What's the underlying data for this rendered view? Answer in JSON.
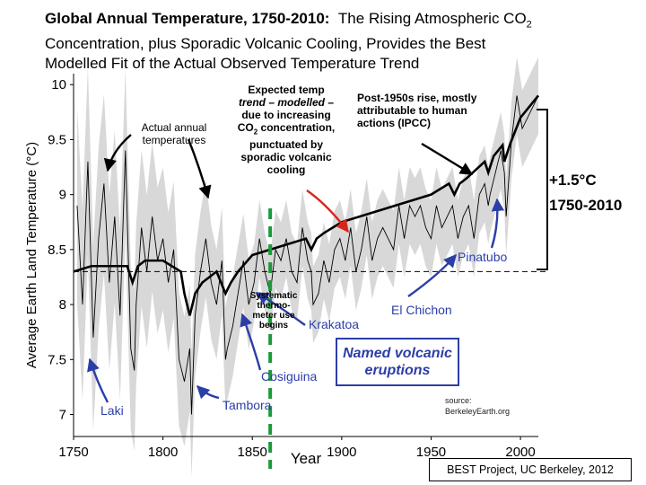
{
  "title": {
    "bold": "Global Annual Temperature, 1750-2010:",
    "line1_rest": "The Rising Atmospheric CO",
    "line1_sub": "2",
    "line2": "Concentration, plus Sporadic Volcanic Cooling, Provides the Best",
    "line3": "Modelled Fit of the Actual Observed Temperature Trend"
  },
  "annotations": {
    "expected": [
      "Expected temp",
      "trend – modelled –",
      "due to increasing",
      "CO2 concentration,",
      "punctuated by",
      "sporadic volcanic",
      "cooling"
    ],
    "actual": [
      "Actual annual",
      "temperatures"
    ],
    "post1950": [
      "Post-1950s rise, mostly",
      "attributable to human",
      "actions (IPCC)"
    ],
    "rise_value": "+1.5°C",
    "rise_years": "1750-2010",
    "systematic": [
      "Systematic",
      "thermo-",
      "meter use",
      "begins"
    ],
    "legend": [
      "Named volcanic",
      "eruptions"
    ],
    "source": [
      "source:",
      "BerkeleyEarth.org"
    ],
    "credit": "BEST Project, UC Berkeley, 2012"
  },
  "chart_data": {
    "type": "line",
    "xlabel": "Year",
    "ylabel": "Average Earth Land Temperature (°C)",
    "xlim": [
      1750,
      2010
    ],
    "ylim": [
      6.8,
      10.1
    ],
    "xticks": [
      1750,
      1800,
      1850,
      1900,
      1950,
      2000
    ],
    "yticks": [
      7,
      7.5,
      8,
      8.5,
      9,
      9.5,
      10
    ],
    "reference_line_y": 8.3,
    "systematic_marker_x": 1860,
    "series": [
      {
        "name": "Actual annual temperatures",
        "color": "#000000",
        "x": [
          1752,
          1755,
          1758,
          1761,
          1764,
          1767,
          1770,
          1773,
          1776,
          1779,
          1782,
          1784,
          1785,
          1788,
          1791,
          1794,
          1797,
          1800,
          1803,
          1806,
          1809,
          1812,
          1815,
          1816,
          1818,
          1821,
          1824,
          1827,
          1830,
          1833,
          1835,
          1836,
          1839,
          1842,
          1845,
          1848,
          1851,
          1854,
          1857,
          1860,
          1863,
          1866,
          1869,
          1872,
          1875,
          1878,
          1881,
          1883,
          1884,
          1887,
          1890,
          1893,
          1896,
          1899,
          1902,
          1905,
          1908,
          1911,
          1914,
          1917,
          1920,
          1923,
          1926,
          1929,
          1932,
          1935,
          1938,
          1941,
          1944,
          1947,
          1950,
          1953,
          1956,
          1959,
          1962,
          1965,
          1968,
          1971,
          1974,
          1977,
          1980,
          1982,
          1983,
          1986,
          1989,
          1991,
          1992,
          1995,
          1998,
          2001,
          2004,
          2007,
          2010
        ],
        "y": [
          8.9,
          8.0,
          9.3,
          7.7,
          8.6,
          9.1,
          8.2,
          8.8,
          7.9,
          9.4,
          7.6,
          7.4,
          8.0,
          8.7,
          8.3,
          8.8,
          8.4,
          8.6,
          8.2,
          8.5,
          7.5,
          7.3,
          7.6,
          7.0,
          7.9,
          8.3,
          8.6,
          8.2,
          8.0,
          8.4,
          7.5,
          7.6,
          7.8,
          8.1,
          8.4,
          8.0,
          8.2,
          8.6,
          8.3,
          8.1,
          8.5,
          8.4,
          8.6,
          8.3,
          8.2,
          8.7,
          8.4,
          8.3,
          8.0,
          8.1,
          8.4,
          8.2,
          8.5,
          8.6,
          8.4,
          8.7,
          8.3,
          8.5,
          8.8,
          8.4,
          8.6,
          8.7,
          8.6,
          8.5,
          8.9,
          8.6,
          8.9,
          8.8,
          8.9,
          8.7,
          8.6,
          8.9,
          8.7,
          8.8,
          8.9,
          8.6,
          8.8,
          8.9,
          8.6,
          9.0,
          9.1,
          8.9,
          9.0,
          9.2,
          9.4,
          9.2,
          8.8,
          9.5,
          9.9,
          9.6,
          9.7,
          9.8,
          9.9
        ]
      },
      {
        "name": "Expected temp trend (modelled)",
        "color": "#000000",
        "x": [
          1750,
          1760,
          1770,
          1780,
          1783,
          1786,
          1790,
          1800,
          1810,
          1812,
          1815,
          1818,
          1822,
          1830,
          1835,
          1838,
          1842,
          1850,
          1860,
          1870,
          1880,
          1883,
          1886,
          1890,
          1900,
          1910,
          1920,
          1930,
          1940,
          1950,
          1960,
          1963,
          1966,
          1970,
          1980,
          1982,
          1985,
          1990,
          1991,
          1994,
          2000,
          2010
        ],
        "y": [
          8.3,
          8.35,
          8.35,
          8.35,
          8.2,
          8.35,
          8.4,
          8.4,
          8.3,
          8.1,
          7.9,
          8.1,
          8.2,
          8.3,
          8.1,
          8.2,
          8.3,
          8.45,
          8.5,
          8.55,
          8.6,
          8.5,
          8.6,
          8.65,
          8.75,
          8.8,
          8.85,
          8.9,
          8.95,
          9.0,
          9.1,
          9.0,
          9.1,
          9.15,
          9.3,
          9.2,
          9.35,
          9.45,
          9.3,
          9.45,
          9.7,
          9.9
        ]
      }
    ],
    "named_eruptions": [
      {
        "name": "Laki",
        "year": 1783
      },
      {
        "name": "Tambora",
        "year": 1815
      },
      {
        "name": "Cosiguina",
        "year": 1835
      },
      {
        "name": "Krakatoa",
        "year": 1883
      },
      {
        "name": "El Chichon",
        "year": 1982
      },
      {
        "name": "Pinatubo",
        "year": 1991
      }
    ],
    "eruption_label_color": "#2b3ea8",
    "series_color": "#000000",
    "uncertainty_color": "#c8c8c8",
    "marker_color": "#1a9a3a",
    "arrow_red": "#d8261f"
  }
}
